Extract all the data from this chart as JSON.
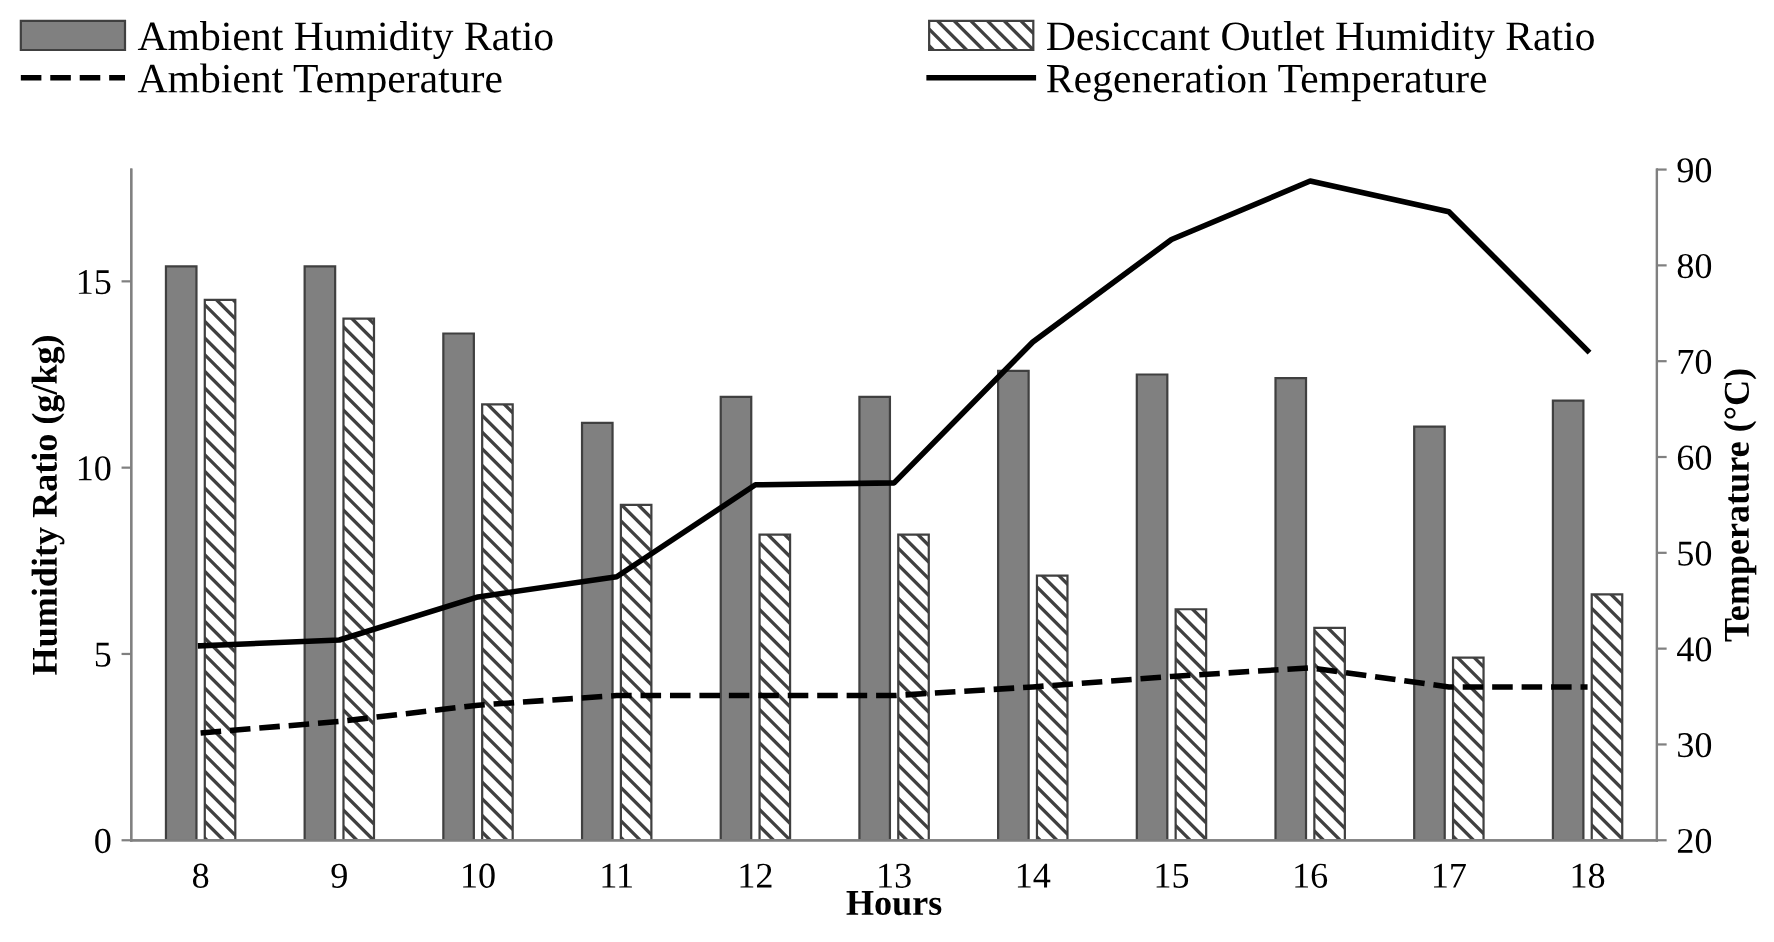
{
  "chart_data": {
    "type": "bar",
    "xlabel": "Hours",
    "ylabel": "Humidity Ratio (g/kg)",
    "y2label": "Temperature (°C)",
    "categories": [
      "8",
      "9",
      "10",
      "11",
      "12",
      "13",
      "14",
      "15",
      "16",
      "17",
      "18"
    ],
    "series": [
      {
        "name": "Ambient Humidity Ratio",
        "color": "#808080",
        "values": [
          15.4,
          15.4,
          13.6,
          11.2,
          11.9,
          11.9,
          12.6,
          12.5,
          12.4,
          11.1,
          11.8
        ]
      },
      {
        "name": "Desiccant Outlet Humidity Ratio",
        "color": "#404040",
        "values": [
          14.5,
          14.0,
          11.7,
          9.0,
          8.2,
          8.2,
          7.1,
          6.2,
          5.7,
          4.9,
          6.6
        ]
      },
      {
        "name": "Ambient Temperature",
        "type": "line",
        "axis": "y2",
        "color": "#000000",
        "line_style": "dashed",
        "values": [
          31.2,
          32.4,
          34.1,
          35.1,
          35.1,
          35.1,
          36.0,
          37.1,
          38.0,
          36.0,
          36.0
        ]
      },
      {
        "name": "Regeneration Temperature",
        "type": "line",
        "axis": "y2",
        "color": "#000000",
        "line_style": "solid",
        "values": [
          40.3,
          40.9,
          45.4,
          47.5,
          57.1,
          57.3,
          72.0,
          82.7,
          88.8,
          85.6,
          71.1
        ]
      }
    ],
    "ylim": [
      0,
      18
    ],
    "yticks": [
      0,
      5,
      10,
      15
    ],
    "y2lim": [
      20,
      90
    ],
    "y2ticks": [
      20,
      30,
      40,
      50,
      60,
      70,
      80,
      90
    ],
    "grid": false,
    "legend": "top",
    "marker": "none"
  }
}
